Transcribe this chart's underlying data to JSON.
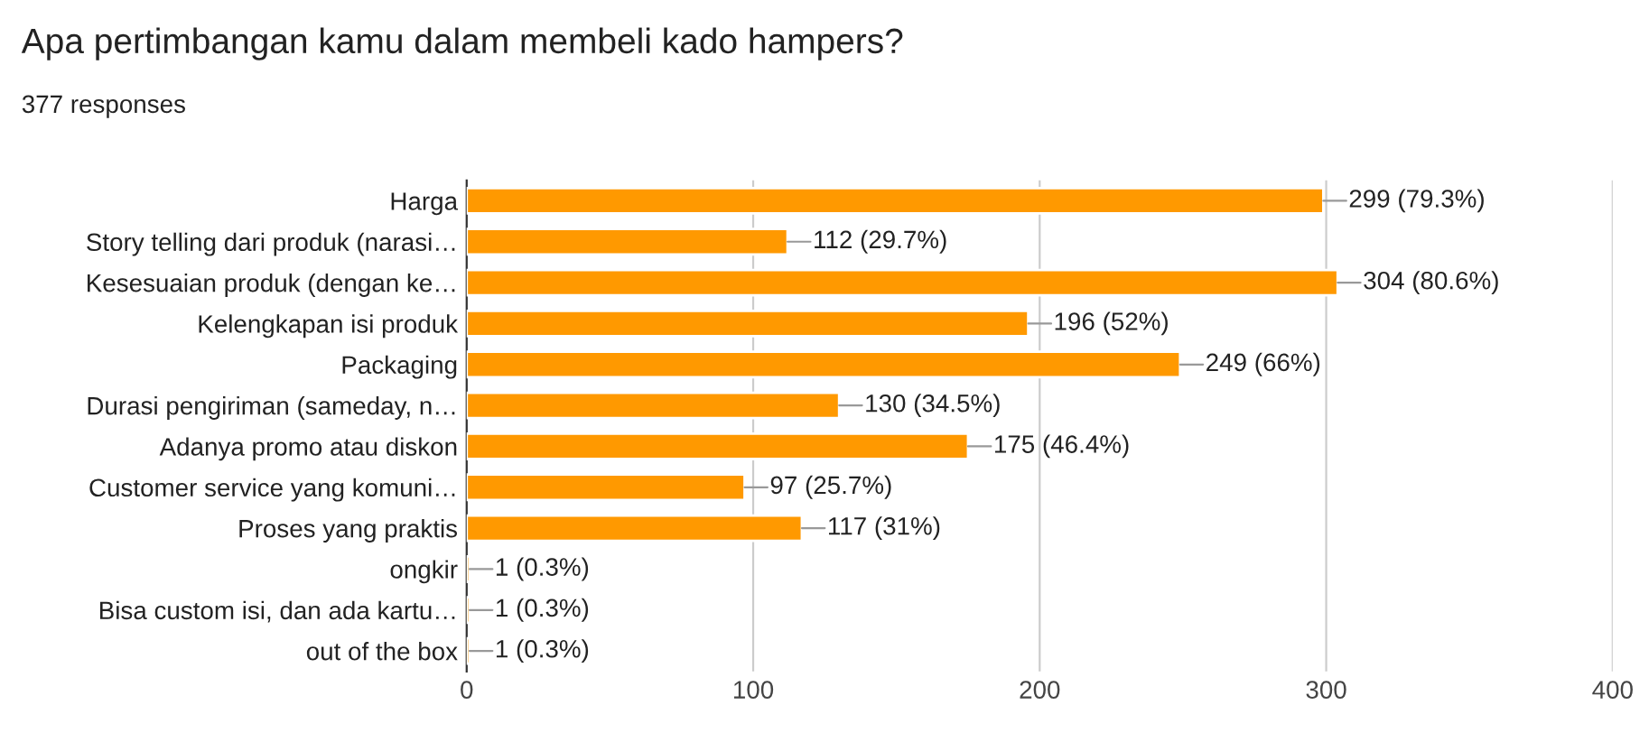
{
  "chart_data": {
    "type": "bar",
    "orientation": "horizontal",
    "title": "Apa pertimbangan kamu dalam membeli kado hampers?",
    "subtitle": "377 responses",
    "categories": [
      "Harga",
      "Story telling dari produk (narasi…",
      "Kesesuaian produk (dengan ke…",
      "Kelengkapan isi produk",
      "Packaging",
      "Durasi pengiriman (sameday, n…",
      "Adanya promo atau diskon",
      "Customer service yang komuni…",
      "Proses yang praktis",
      "ongkir",
      "Bisa custom isi, dan ada kartu…",
      "out of the box"
    ],
    "values": [
      299,
      112,
      304,
      196,
      249,
      130,
      175,
      97,
      117,
      1,
      1,
      1
    ],
    "value_labels": [
      "299 (79.3%)",
      "112 (29.7%)",
      "304 (80.6%)",
      "196 (52%)",
      "249 (66%)",
      "130 (34.5%)",
      "175 (46.4%)",
      "97 (25.7%)",
      "117 (31%)",
      "1 (0.3%)",
      "1 (0.3%)",
      "1 (0.3%)"
    ],
    "color": "#ff9900",
    "xlim": [
      0,
      400
    ],
    "xticks": [
      0,
      100,
      200,
      300,
      400
    ],
    "grid": "x"
  }
}
